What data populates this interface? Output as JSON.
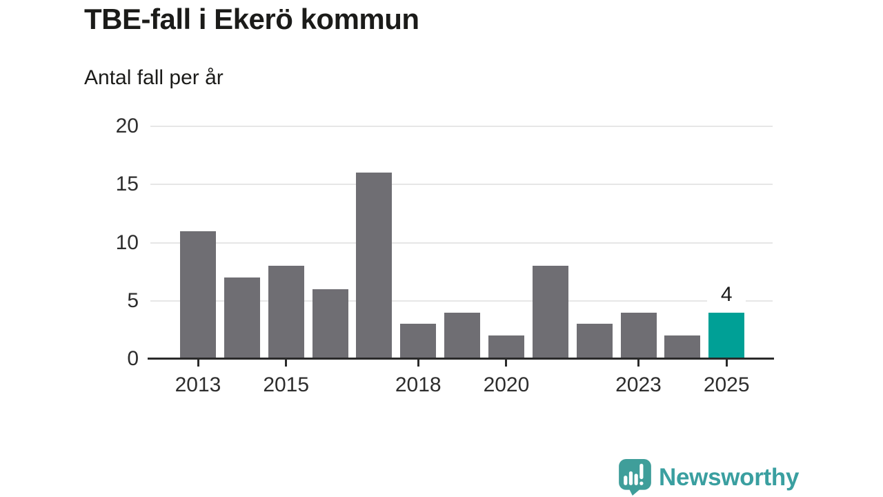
{
  "chart": {
    "title": "TBE-fall i Ekerö kommun",
    "subtitle": "Antal fall per år"
  },
  "chart_data": {
    "type": "bar",
    "title": "TBE-fall i Ekerö kommun",
    "subtitle": "Antal fall per år",
    "categories": [
      "2013",
      "2014",
      "2015",
      "2016",
      "2017",
      "2018",
      "2019",
      "2020",
      "2021",
      "2022",
      "2023",
      "2024",
      "2025"
    ],
    "values": [
      11,
      7,
      8,
      6,
      16,
      3,
      4,
      2,
      8,
      3,
      4,
      2,
      4
    ],
    "xlabel": "",
    "ylabel": "",
    "ylim": [
      0,
      20
    ],
    "y_ticks": [
      0,
      5,
      10,
      15,
      20
    ],
    "x_tick_indices": [
      0,
      2,
      5,
      7,
      10,
      12
    ],
    "x_tick_labels": [
      "2013",
      "2015",
      "2018",
      "2020",
      "2023",
      "2025"
    ],
    "grid": true,
    "legend": "none",
    "bar_color": "#6f6e73",
    "highlight_index": 12,
    "highlight_color": "#00a096",
    "annotation": {
      "index": 12,
      "label": "4"
    }
  },
  "branding": {
    "logo_text": "Newsworthy",
    "logo_text_color": "#3a9fa0",
    "logo_icon_color": "#3f9e9a",
    "logo_icon": "newsworthy-chart-bubble-icon"
  }
}
